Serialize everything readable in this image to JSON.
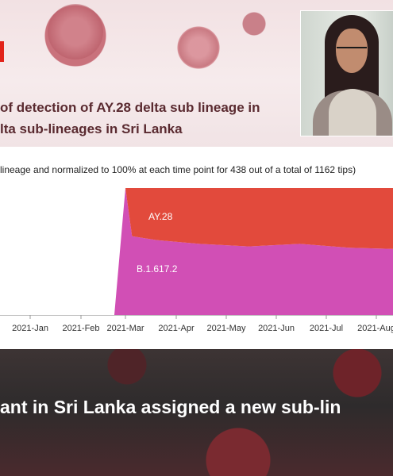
{
  "heading": {
    "line1": "of detection of AY.28 delta sub lineage in",
    "line2": "lta sub-lineages in Sri Lanka"
  },
  "photo": {
    "icon": "portrait-photo"
  },
  "chart_data": {
    "type": "area",
    "subtitle": "lineage and normalized to 100% at each time point for 438 out of a total of 1162 tips)",
    "x_ticks": [
      "2021-Jan",
      "2021-Feb",
      "2021-Mar",
      "2021-Apr",
      "2021-May",
      "2021-Jun",
      "2021-Jul",
      "2021-Aug"
    ],
    "x": [
      "2021-03-01",
      "2021-03-05",
      "2021-03-20",
      "2021-04-15",
      "2021-05-15",
      "2021-06-15",
      "2021-07-15",
      "2021-08-15"
    ],
    "series": [
      {
        "name": "B.1.617.2",
        "color": "#d14fb5",
        "values": [
          100,
          62,
          59,
          56,
          54,
          56,
          53,
          52
        ]
      },
      {
        "name": "AY.28",
        "color": "#e24a3c",
        "values": [
          0,
          38,
          41,
          44,
          46,
          44,
          47,
          48
        ]
      }
    ],
    "ylim": [
      0,
      100
    ],
    "stacked": true,
    "normalized": true
  },
  "bottom": {
    "caption": "ant in Sri Lanka assigned a new sub-lin"
  }
}
